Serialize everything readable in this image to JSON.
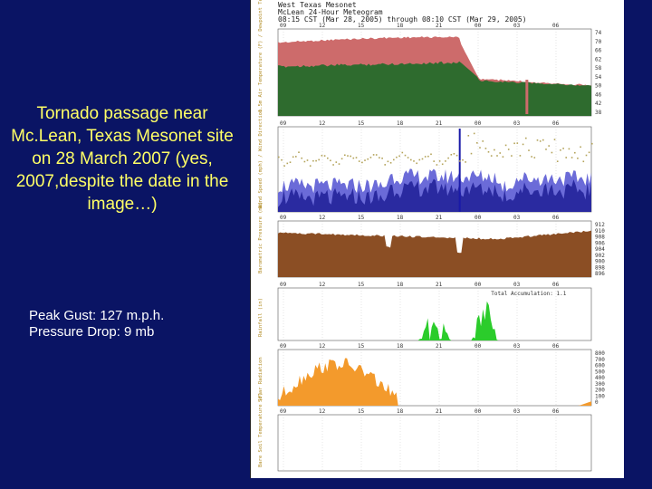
{
  "slide": {
    "title": "Tornado passage near Mc.Lean, Texas Mesonet site on 28 March 2007 (yes, 2007,despite the date in the image…)",
    "notes": [
      "Peak Gust: 127 m.p.h.",
      "Pressure Drop: 9 mb"
    ]
  },
  "meteogram": {
    "header": [
      "West Texas Mesonet",
      "McLean 24-Hour Meteogram",
      "08:15 CST (Mar 28, 2005) through 08:10 CST (Mar 29, 2005)"
    ],
    "hour_ticks": [
      "09",
      "12",
      "15",
      "18",
      "21",
      "00",
      "03",
      "06"
    ],
    "panel_labels": [
      "1.5m Air Temperature (F) / Dewpoint Temperature (F)",
      "Wind Speed (mph) / Wind Direction",
      "Barometric Pressure (mb)",
      "Rainfall (in)",
      "Solar Radiation",
      "Bare Soil Temperature (F)"
    ],
    "rain_note": "Total Accumulation: 1.1",
    "temp_ticks": [
      "74",
      "70",
      "66",
      "62",
      "58",
      "54",
      "50",
      "46",
      "42",
      "38"
    ],
    "pressure_ticks": [
      "912",
      "910",
      "908",
      "906",
      "904",
      "902",
      "900",
      "898",
      "896"
    ],
    "solar_ticks": [
      "800",
      "700",
      "600",
      "500",
      "400",
      "300",
      "200",
      "100",
      "0"
    ],
    "colors": {
      "background": "#0a1464",
      "title": "#ffff66",
      "temperature": "#cd6b6b",
      "dewpoint": "#2e6b2e",
      "wind_mean": "#2a2aa0",
      "wind_gust": "#6b6bd8",
      "wind_dir": "#b4a35a",
      "pressure": "#8b4e24",
      "rain": "#2bcc2b",
      "solar": "#f39a2c"
    }
  }
}
